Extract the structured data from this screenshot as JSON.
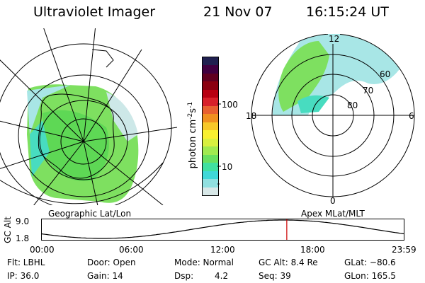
{
  "header": {
    "instrument": "Ultraviolet Imager",
    "date": "21 Nov 07",
    "time": "16:15:24 UT"
  },
  "colorbar": {
    "label": "photon cm",
    "label_sup1": "-2",
    "label_mid": "s",
    "label_sup2": "-1",
    "tick_100": "100",
    "tick_10": "10",
    "colors": [
      "#202050",
      "#400040",
      "#600020",
      "#8b0010",
      "#b80012",
      "#d8202a",
      "#e86030",
      "#f09020",
      "#f8c828",
      "#f8f030",
      "#d8f040",
      "#a0ea50",
      "#68e060",
      "#40e0a0",
      "#40d8d8",
      "#90e0e0",
      "#d8e8e8"
    ]
  },
  "left_map": {
    "caption": "Geographic Lat/Lon"
  },
  "right_map": {
    "caption": "Apex MLat/MLT",
    "mlt_12": "12",
    "mlt_18": "18",
    "mlt_6": "6",
    "mlt_0": "0",
    "lat_60": "60",
    "lat_70": "70",
    "lat_80": "80"
  },
  "timeline": {
    "axis_label": "GC Alt",
    "y_top": "9.0",
    "y_bottom": "1.8",
    "ticks": [
      "00:00",
      "06:00",
      "12:00",
      "18:00",
      "23:59"
    ],
    "current_marker_hour": 16.26,
    "marker_color": "#cc0000"
  },
  "status": {
    "filter": "Flt: LBHL",
    "door": "Door: Open",
    "mode": "Mode: Normal",
    "gc_alt": "GC Alt: 8.4 Re",
    "glat": "GLat: −80.6",
    "ip": "IP: 36.0",
    "gain": "Gain: 14",
    "dsp_label": "Dsp:",
    "dsp_value": "4.2",
    "seq": "Seq: 39",
    "glon": "GLon: 165.5"
  }
}
